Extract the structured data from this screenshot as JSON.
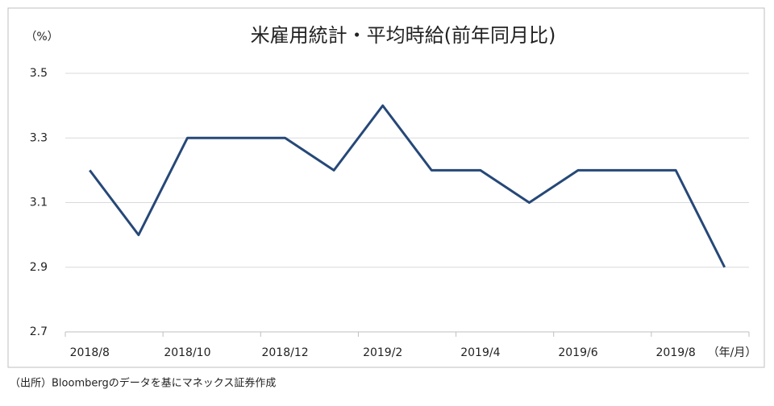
{
  "chart_data": {
    "type": "line",
    "title": "米雇用統計・平均時給(前年同月比)",
    "y_unit": "（%）",
    "x_unit": "（年/月）",
    "source": "（出所）Bloombergのデータを基にマネックス証券作成",
    "categories": [
      "2018/8",
      null,
      "2018/10",
      null,
      "2018/12",
      null,
      "2019/2",
      null,
      "2019/4",
      null,
      "2019/6",
      null,
      "2019/8",
      null
    ],
    "series": [
      {
        "name": "平均時給",
        "color": "#264878",
        "values": [
          3.2,
          3.0,
          3.3,
          3.3,
          3.3,
          3.2,
          3.4,
          3.2,
          3.2,
          3.1,
          3.2,
          3.2,
          3.2,
          2.9
        ]
      }
    ],
    "ylim": [
      2.7,
      3.5
    ],
    "yticks": [
      2.7,
      2.9,
      3.1,
      3.3,
      3.5
    ],
    "grid": true
  }
}
